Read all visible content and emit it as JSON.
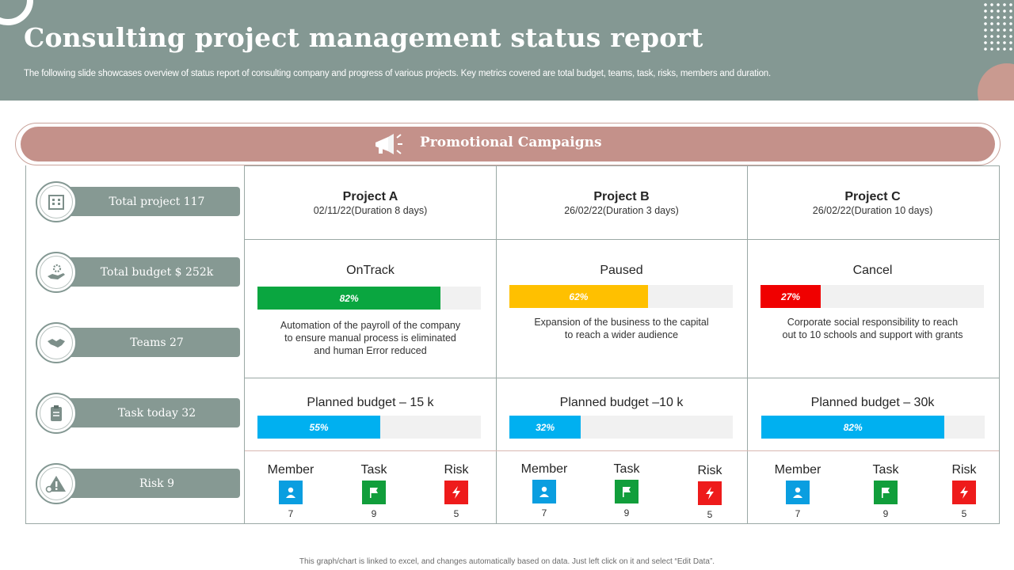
{
  "header": {
    "title": "Consulting project management status report",
    "subtitle": "The following slide showcases overview of status report of consulting company and progress of various projects. Key metrics covered are total budget, teams, task, risks, members and duration."
  },
  "banner": {
    "label": "Promotional Campaigns",
    "icon": "megaphone-icon"
  },
  "metrics": [
    {
      "label": "Total project 117",
      "icon": "building-icon"
    },
    {
      "label": "Total budget $ 252k",
      "icon": "hand-gear-icon"
    },
    {
      "label": "Teams 27",
      "icon": "handshake-icon"
    },
    {
      "label": "Task today 32",
      "icon": "clipboard-icon"
    },
    {
      "label": "Risk 9",
      "icon": "warning-gear-icon"
    }
  ],
  "projects": [
    {
      "name": "Project A",
      "date": "02/11/22(Duration  8 days)",
      "status": "OnTrack",
      "status_pct": 82,
      "status_pct_label": "82%",
      "status_color": "#0aa640",
      "description_lines": [
        "Automation of the payroll of the company",
        "to ensure manual process is eliminated",
        "and human Error reduced"
      ],
      "budget_label": "Planned budget – 15 k",
      "budget_pct": 55,
      "budget_pct_label": "55%",
      "stats": {
        "member_label": "Member",
        "member": "7",
        "task_label": "Task",
        "task": "9",
        "risk_label": "Risk",
        "risk": "5"
      }
    },
    {
      "name": "Project B",
      "date": "26/02/22(Duration  3 days)",
      "status": "Paused",
      "status_pct": 62,
      "status_pct_label": "62%",
      "status_color": "#ffc000",
      "description_lines": [
        "Expansion of the business to the capital",
        "to reach a wider  audience"
      ],
      "budget_label": "Planned budget –10 k",
      "budget_pct": 32,
      "budget_pct_label": "32%",
      "stats": {
        "member_label": "Member",
        "member": "7",
        "task_label": "Task",
        "task": "9",
        "risk_label": "Risk",
        "risk": "5"
      }
    },
    {
      "name": "Project C",
      "date": "26/02/22(Duration  10 days)",
      "status": "Cancel",
      "status_pct": 27,
      "status_pct_label": "27%",
      "status_color": "#f00000",
      "description_lines": [
        "Corporate social responsibility to reach",
        "out to 10 schools and support with grants"
      ],
      "budget_label": "Planned budget – 30k",
      "budget_pct": 82,
      "budget_pct_label": "82%",
      "stats": {
        "member_label": "Member",
        "member": "7",
        "task_label": "Task",
        "task": "9",
        "risk_label": "Risk",
        "risk": "5"
      }
    }
  ],
  "colors": {
    "header_bg": "#849893",
    "banner_bg": "#c4918a",
    "pill_bg": "#869993",
    "budget_bar": "#00b0f0",
    "member": "#0a9ee0",
    "task": "#119e3b",
    "risk": "#ee1b1b"
  },
  "footer": "This graph/chart is linked to excel, and changes automatically based on data. Just left click on it and select “Edit Data”."
}
